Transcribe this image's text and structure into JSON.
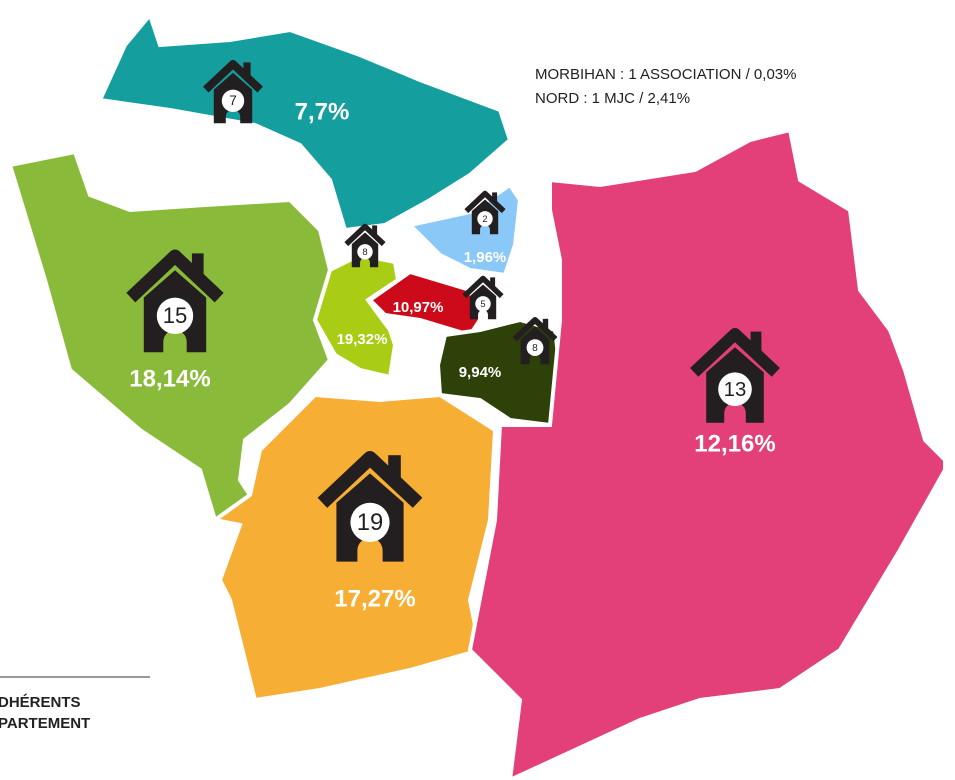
{
  "notes": [
    "MORBIHAN : 1 ASSOCIATION / 0,03%",
    "NORD : 1 MJC / 2,41%"
  ],
  "legend": [
    "DHÉRENTS",
    "PARTEMENT"
  ],
  "regions": [
    {
      "count": 7,
      "share": "7,7%",
      "color": "#149e9e"
    },
    {
      "count": 15,
      "share": "18,14%",
      "color": "#8aba3a"
    },
    {
      "count": 8,
      "share": "19,32%",
      "color": "#a9cc14"
    },
    {
      "count": 2,
      "share": "1,96%",
      "color": "#8ac8f8"
    },
    {
      "count": 5,
      "share": "10,97%",
      "color": "#cc0a1a"
    },
    {
      "count": 8,
      "share": "9,94%",
      "color": "#2e4108"
    },
    {
      "count": 19,
      "share": "17,27%",
      "color": "#f6ae34"
    },
    {
      "count": 13,
      "share": "12,16%",
      "color": "#e33f78"
    }
  ]
}
